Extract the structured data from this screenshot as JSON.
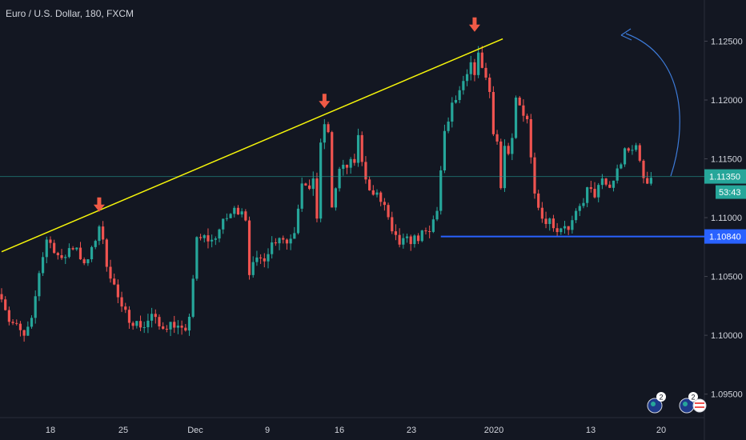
{
  "header": {
    "title": "Euro / U.S. Dollar, 180, FXCM"
  },
  "colors": {
    "background": "#131722",
    "up": "#26a69a",
    "down": "#ef5350",
    "axis_text": "#d1d4dc",
    "trendline": "#f5f50a",
    "support": "#2962ff",
    "arrow": "#f05a46",
    "current_price_line": "#26a69a",
    "curve": "#3d7bd9"
  },
  "chart_data": {
    "type": "candlestick",
    "symbol": "EURUSD",
    "interval": "180",
    "source": "FXCM",
    "ylim": [
      1.0945,
      1.1285
    ],
    "y_ticks": [
      1.095,
      1.1,
      1.105,
      1.11,
      1.115,
      1.12,
      1.125
    ],
    "y_tick_labels": [
      "1.09500",
      "1.10000",
      "1.10500",
      "1.11000",
      "1.11500",
      "1.12000",
      "1.12500"
    ],
    "x_ticks": [
      "18",
      "25",
      "Dec",
      "9",
      "16",
      "23",
      "2020",
      "13",
      "20"
    ],
    "last_price": {
      "value": 1.1135,
      "label": "1.11350",
      "countdown": "53:43"
    },
    "support_level": {
      "value": 1.1084,
      "label": "1.10840"
    },
    "price_path": [
      [
        0,
        1.1035
      ],
      [
        2,
        1.1013
      ],
      [
        4,
        1.1007
      ],
      [
        6,
        1.0998
      ],
      [
        8,
        1.1011
      ],
      [
        10,
        1.1054
      ],
      [
        12,
        1.1082
      ],
      [
        14,
        1.1074
      ],
      [
        16,
        1.1062
      ],
      [
        18,
        1.1074
      ],
      [
        20,
        1.1076
      ],
      [
        22,
        1.1058
      ],
      [
        24,
        1.1071
      ],
      [
        26,
        1.1094
      ],
      [
        28,
        1.1062
      ],
      [
        30,
        1.1042
      ],
      [
        32,
        1.1021
      ],
      [
        34,
        1.1015
      ],
      [
        36,
        1.101
      ],
      [
        38,
        1.1008
      ],
      [
        40,
        1.1017
      ],
      [
        42,
        1.1007
      ],
      [
        44,
        1.1009
      ],
      [
        46,
        1.101
      ],
      [
        48,
        1.1003
      ],
      [
        49,
        1.1
      ],
      [
        50,
        1.1018
      ],
      [
        52,
        1.108
      ],
      [
        54,
        1.1083
      ],
      [
        56,
        1.108
      ],
      [
        58,
        1.109
      ],
      [
        60,
        1.11
      ],
      [
        62,
        1.1106
      ],
      [
        64,
        1.1108
      ],
      [
        65,
        1.11
      ],
      [
        66,
        1.1055
      ],
      [
        68,
        1.1062
      ],
      [
        70,
        1.1067
      ],
      [
        72,
        1.1078
      ],
      [
        74,
        1.1085
      ],
      [
        76,
        1.1079
      ],
      [
        78,
        1.109
      ],
      [
        80,
        1.1132
      ],
      [
        82,
        1.112
      ],
      [
        83,
        1.1135
      ],
      [
        84,
        1.11
      ],
      [
        85,
        1.116
      ],
      [
        86,
        1.118
      ],
      [
        87,
        1.117
      ],
      [
        88,
        1.111
      ],
      [
        90,
        1.114
      ],
      [
        92,
        1.1143
      ],
      [
        94,
        1.1148
      ],
      [
        95,
        1.1168
      ],
      [
        96,
        1.115
      ],
      [
        98,
        1.1122
      ],
      [
        100,
        1.1118
      ],
      [
        102,
        1.111
      ],
      [
        104,
        1.1085
      ],
      [
        106,
        1.1078
      ],
      [
        108,
        1.108
      ],
      [
        110,
        1.1082
      ],
      [
        112,
        1.1085
      ],
      [
        114,
        1.1087
      ],
      [
        116,
        1.1108
      ],
      [
        118,
        1.117
      ],
      [
        120,
        1.1195
      ],
      [
        122,
        1.1205
      ],
      [
        124,
        1.122
      ],
      [
        125,
        1.1228
      ],
      [
        126,
        1.1225
      ],
      [
        127,
        1.1237
      ],
      [
        128,
        1.123
      ],
      [
        130,
        1.1207
      ],
      [
        131,
        1.1175
      ],
      [
        132,
        1.1165
      ],
      [
        133,
        1.1125
      ],
      [
        134,
        1.116
      ],
      [
        135,
        1.115
      ],
      [
        136,
        1.1165
      ],
      [
        137,
        1.12
      ],
      [
        138,
        1.1195
      ],
      [
        140,
        1.1185
      ],
      [
        141,
        1.115
      ],
      [
        142,
        1.1125
      ],
      [
        144,
        1.11
      ],
      [
        146,
        1.1098
      ],
      [
        148,
        1.109
      ],
      [
        150,
        1.1095
      ],
      [
        151,
        1.1088
      ],
      [
        152,
        1.1095
      ],
      [
        154,
        1.1108
      ],
      [
        156,
        1.1123
      ],
      [
        158,
        1.112
      ],
      [
        160,
        1.113
      ],
      [
        162,
        1.1125
      ],
      [
        164,
        1.114
      ],
      [
        166,
        1.1155
      ],
      [
        168,
        1.1157
      ],
      [
        169,
        1.1165
      ],
      [
        170,
        1.1145
      ],
      [
        171,
        1.1135
      ],
      [
        172,
        1.1132
      ],
      [
        173,
        1.1135
      ]
    ],
    "trendline": [
      [
        0,
        1.1071
      ],
      [
        133.5,
        1.1252
      ]
    ],
    "annotation_arrows": [
      {
        "index": 26,
        "price": 1.1105
      },
      {
        "index": 86,
        "price": 1.1193
      },
      {
        "index": 126,
        "price": 1.1258
      }
    ]
  },
  "events": [
    {
      "name": "event-marker-1",
      "count": "2"
    },
    {
      "name": "event-marker-2",
      "count": "2"
    }
  ]
}
